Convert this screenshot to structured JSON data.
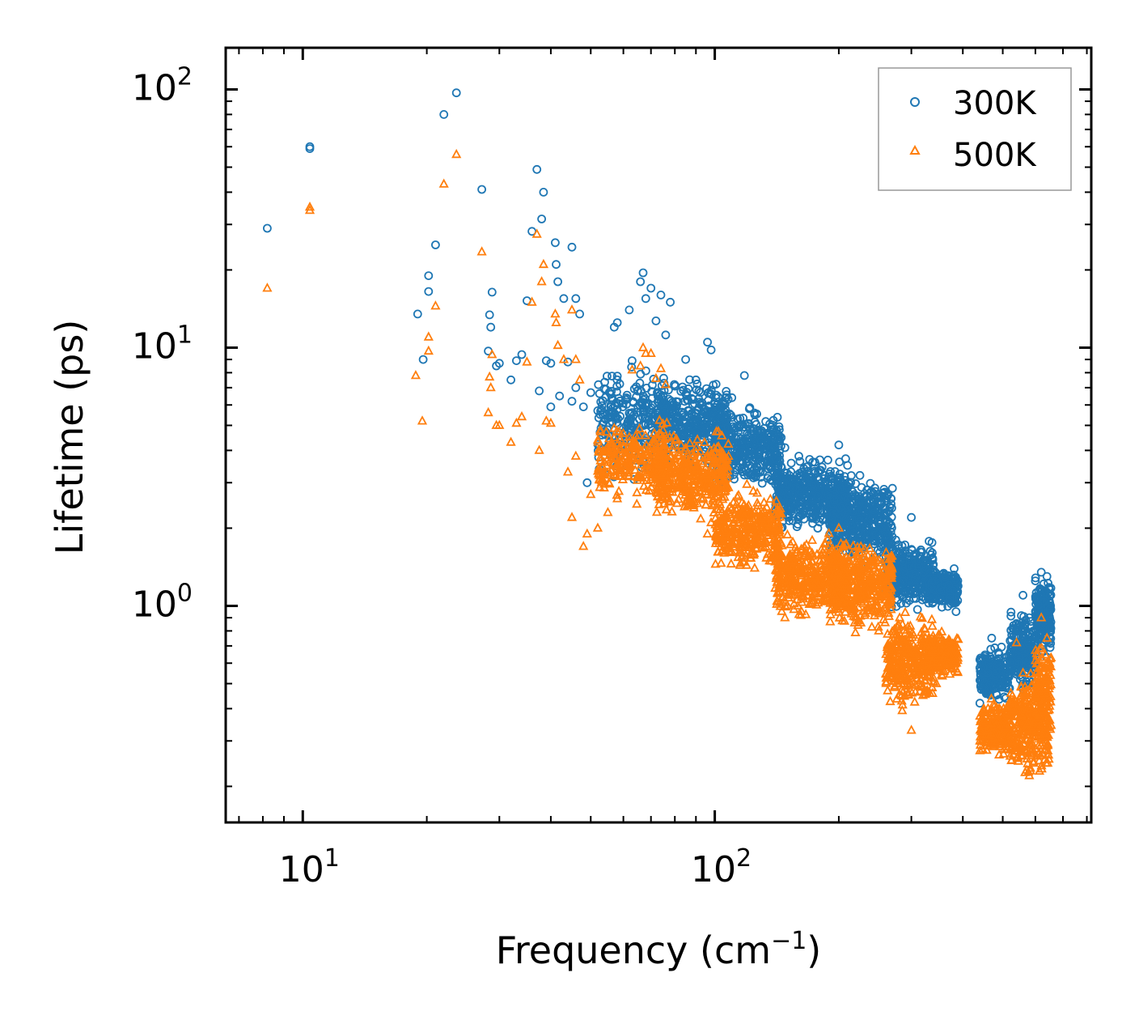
{
  "chart_data": {
    "type": "scatter",
    "xscale": "log",
    "yscale": "log",
    "xlim": [
      6.5,
      820
    ],
    "ylim": [
      0.145,
      145
    ],
    "xlabel": "Frequency (cm",
    "xlabel_sup": "−1",
    "xlabel_close": ")",
    "ylabel": "Lifetime (ps)",
    "x_ticks": [
      {
        "value": 10,
        "base": "10",
        "exp": "1"
      },
      {
        "value": 100,
        "base": "10",
        "exp": "2"
      }
    ],
    "y_ticks": [
      {
        "value": 1,
        "base": "10",
        "exp": "0"
      },
      {
        "value": 10,
        "base": "10",
        "exp": "1"
      },
      {
        "value": 100,
        "base": "10",
        "exp": "2"
      }
    ],
    "legend_position": "top-right",
    "series": [
      {
        "name": "300K",
        "marker": "circle",
        "color": "#1f77b4",
        "points": [
          [
            8.2,
            29
          ],
          [
            10.4,
            59
          ],
          [
            10.4,
            60
          ],
          [
            19,
            13.5
          ],
          [
            19.6,
            9
          ],
          [
            20.2,
            19
          ],
          [
            20.2,
            16.5
          ],
          [
            21,
            25
          ],
          [
            22,
            80
          ],
          [
            23.6,
            97
          ],
          [
            27.2,
            41
          ],
          [
            28.2,
            9.7
          ],
          [
            28.4,
            13.4
          ],
          [
            28.6,
            12
          ],
          [
            28.8,
            16.4
          ],
          [
            29.5,
            8.5
          ],
          [
            30,
            8.7
          ],
          [
            32,
            7.5
          ],
          [
            33,
            8.9
          ],
          [
            34,
            9.4
          ],
          [
            35,
            15.2
          ],
          [
            36,
            28.2
          ],
          [
            37,
            49
          ],
          [
            37.5,
            6.8
          ],
          [
            38,
            31.5
          ],
          [
            38.4,
            40
          ],
          [
            39,
            8.9
          ],
          [
            40,
            8.7
          ],
          [
            40,
            5.9
          ],
          [
            41,
            25.5
          ],
          [
            41.2,
            21
          ],
          [
            41.6,
            18
          ],
          [
            42,
            6.5
          ],
          [
            43,
            15.5
          ],
          [
            44,
            8.8
          ],
          [
            45,
            24.5
          ],
          [
            45,
            6.2
          ],
          [
            46,
            15.5
          ],
          [
            46,
            7
          ],
          [
            47,
            13.5
          ],
          [
            48,
            5.9
          ],
          [
            49,
            3
          ],
          [
            50,
            6.7
          ],
          [
            52,
            5.7
          ],
          [
            55,
            4
          ],
          [
            57,
            12
          ],
          [
            58,
            12.5
          ],
          [
            62,
            14
          ],
          [
            63,
            8.9
          ],
          [
            66,
            18
          ],
          [
            67,
            19.5
          ],
          [
            68,
            15.5
          ],
          [
            70,
            17
          ],
          [
            72,
            12.7
          ],
          [
            74,
            16
          ],
          [
            76,
            11.2
          ],
          [
            78,
            15
          ],
          [
            85,
            9
          ],
          [
            90,
            7.5
          ],
          [
            96,
            10.5
          ],
          [
            98,
            9.8
          ],
          [
            110,
            6.4
          ],
          [
            118,
            7.8
          ],
          [
            125,
            5.5
          ],
          [
            132,
            4.3
          ],
          [
            148,
            4.1
          ],
          [
            160,
            3.8
          ],
          [
            175,
            3.6
          ],
          [
            185,
            3.2
          ],
          [
            200,
            4.2
          ],
          [
            210,
            3.5
          ],
          [
            225,
            3.2
          ],
          [
            250,
            2.7
          ],
          [
            260,
            2.3
          ],
          [
            275,
            1.8
          ],
          [
            290,
            1.6
          ],
          [
            300,
            2.2
          ],
          [
            320,
            1.5
          ],
          [
            345,
            1.3
          ],
          [
            370,
            1.2
          ],
          [
            385,
            0.95
          ],
          [
            440,
            0.42
          ],
          [
            460,
            0.55
          ],
          [
            470,
            0.75
          ],
          [
            490,
            0.65
          ],
          [
            510,
            0.55
          ],
          [
            540,
            0.85
          ],
          [
            560,
            1.1
          ],
          [
            580,
            0.9
          ],
          [
            600,
            1.25
          ],
          [
            620,
            1.35
          ],
          [
            640,
            1.3
          ],
          [
            650,
            1.1
          ]
        ],
        "bands": [
          {
            "x": [
              52,
              76
            ],
            "y": [
              2.8,
              9.5
            ],
            "n": 260
          },
          {
            "x": [
              72,
              108
            ],
            "y": [
              3.2,
              8
            ],
            "n": 420
          },
          {
            "x": [
              100,
              145
            ],
            "y": [
              2.6,
              6.2
            ],
            "n": 380
          },
          {
            "x": [
              140,
              210
            ],
            "y": [
              1.8,
              4.0
            ],
            "n": 460
          },
          {
            "x": [
              190,
              270
            ],
            "y": [
              1.35,
              3.4
            ],
            "n": 420
          },
          {
            "x": [
              260,
              340
            ],
            "y": [
              0.92,
              1.9
            ],
            "n": 360
          },
          {
            "x": [
              330,
              390
            ],
            "y": [
              0.95,
              1.45
            ],
            "n": 220
          },
          {
            "x": [
              440,
              520
            ],
            "y": [
              0.4,
              0.72
            ],
            "n": 220
          },
          {
            "x": [
              520,
              600
            ],
            "y": [
              0.45,
              1.0
            ],
            "n": 220
          },
          {
            "x": [
              600,
              655
            ],
            "y": [
              0.62,
              1.35
            ],
            "n": 200
          }
        ]
      },
      {
        "name": "500K",
        "marker": "triangle",
        "color": "#ff7f0e",
        "points": [
          [
            8.2,
            17
          ],
          [
            10.4,
            34
          ],
          [
            10.4,
            35
          ],
          [
            18.8,
            7.8
          ],
          [
            19.5,
            5.2
          ],
          [
            20.2,
            11
          ],
          [
            20.2,
            9.7
          ],
          [
            21,
            14.5
          ],
          [
            22,
            43
          ],
          [
            23.6,
            56
          ],
          [
            27.2,
            23.5
          ],
          [
            28.2,
            5.6
          ],
          [
            28.4,
            7.7
          ],
          [
            28.6,
            7
          ],
          [
            28.8,
            9.4
          ],
          [
            29.5,
            5
          ],
          [
            30,
            5
          ],
          [
            32,
            4.3
          ],
          [
            33,
            5.1
          ],
          [
            34,
            5.4
          ],
          [
            35,
            8.8
          ],
          [
            36,
            15
          ],
          [
            37,
            27.5
          ],
          [
            37.5,
            4
          ],
          [
            38,
            18
          ],
          [
            38.4,
            21
          ],
          [
            39,
            5.2
          ],
          [
            40,
            5.1
          ],
          [
            41,
            13.5
          ],
          [
            41.2,
            12.5
          ],
          [
            41.6,
            10.2
          ],
          [
            43,
            9
          ],
          [
            44,
            3.3
          ],
          [
            45,
            14
          ],
          [
            45,
            2.2
          ],
          [
            46,
            9
          ],
          [
            46,
            3.8
          ],
          [
            47,
            7.5
          ],
          [
            48,
            1.7
          ],
          [
            49,
            1.9
          ],
          [
            50,
            2.7
          ],
          [
            52,
            2.0
          ],
          [
            55,
            2.3
          ],
          [
            57,
            3.2
          ],
          [
            58,
            2.6
          ],
          [
            62,
            4.5
          ],
          [
            63,
            8.2
          ],
          [
            66,
            8.5
          ],
          [
            67,
            10
          ],
          [
            68,
            9.5
          ],
          [
            70,
            9.5
          ],
          [
            72,
            7.6
          ],
          [
            74,
            8.3
          ],
          [
            76,
            7.2
          ],
          [
            85,
            4
          ],
          [
            90,
            2.8
          ],
          [
            96,
            1.9
          ],
          [
            98,
            2.1
          ],
          [
            118,
            1.6
          ],
          [
            125,
            1.4
          ],
          [
            148,
            0.9
          ],
          [
            160,
            1.5
          ],
          [
            175,
            1.3
          ],
          [
            200,
            2.0
          ],
          [
            210,
            1.5
          ],
          [
            225,
            1.2
          ],
          [
            250,
            0.8
          ],
          [
            270,
            0.6
          ],
          [
            300,
            0.33
          ],
          [
            320,
            0.45
          ],
          [
            345,
            0.5
          ],
          [
            370,
            0.6
          ],
          [
            440,
            0.3
          ],
          [
            460,
            0.33
          ],
          [
            490,
            0.4
          ],
          [
            520,
            0.42
          ],
          [
            540,
            0.72
          ],
          [
            560,
            0.55
          ],
          [
            580,
            0.22
          ],
          [
            600,
            0.45
          ],
          [
            620,
            0.9
          ],
          [
            640,
            0.75
          ],
          [
            650,
            0.6
          ]
        ],
        "bands": [
          {
            "x": [
              52,
              76
            ],
            "y": [
              2.4,
              5.5
            ],
            "n": 240
          },
          {
            "x": [
              72,
              108
            ],
            "y": [
              2.0,
              5.2
            ],
            "n": 400
          },
          {
            "x": [
              100,
              145
            ],
            "y": [
              1.3,
              3.0
            ],
            "n": 360
          },
          {
            "x": [
              140,
              210
            ],
            "y": [
              0.85,
              2.0
            ],
            "n": 440
          },
          {
            "x": [
              190,
              270
            ],
            "y": [
              0.75,
              1.9
            ],
            "n": 400
          },
          {
            "x": [
              260,
              340
            ],
            "y": [
              0.38,
              1.0
            ],
            "n": 340
          },
          {
            "x": [
              330,
              390
            ],
            "y": [
              0.5,
              0.85
            ],
            "n": 200
          },
          {
            "x": [
              440,
              520
            ],
            "y": [
              0.25,
              0.45
            ],
            "n": 220
          },
          {
            "x": [
              520,
              600
            ],
            "y": [
              0.2,
              0.6
            ],
            "n": 220
          },
          {
            "x": [
              600,
              655
            ],
            "y": [
              0.2,
              0.85
            ],
            "n": 200
          }
        ]
      }
    ]
  }
}
